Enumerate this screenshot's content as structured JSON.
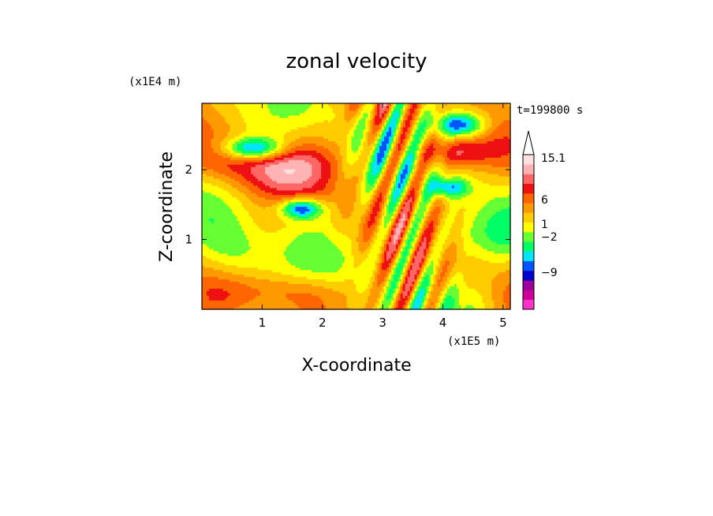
{
  "chart_data": {
    "type": "heatmap",
    "title": "zonal velocity",
    "xlabel": "X-coordinate",
    "ylabel": "Z-coordinate",
    "x_unit": "(x1E5 m)",
    "y_unit": "(x1E4 m)",
    "time_label": "t=199800 s",
    "xlim": [
      0,
      5.12
    ],
    "ylim": [
      0,
      2.95
    ],
    "x_ticks": [
      1,
      2,
      3,
      4,
      5
    ],
    "y_ticks": [
      1,
      2
    ],
    "colorbar": {
      "labels": [
        "15.1",
        "6",
        "1",
        "−2",
        "−9"
      ],
      "bins": [
        {
          "color": "#ff33cc"
        },
        {
          "color": "#cc0099"
        },
        {
          "color": "#990099"
        },
        {
          "color": "#0000cc"
        },
        {
          "color": "#0055ff"
        },
        {
          "color": "#00e5ff"
        },
        {
          "color": "#00ff66"
        },
        {
          "color": "#66ff33"
        },
        {
          "color": "#ffff00"
        },
        {
          "color": "#ffcc00"
        },
        {
          "color": "#ff9900"
        },
        {
          "color": "#ff6600"
        },
        {
          "color": "#ee1111"
        },
        {
          "color": "#ff6666"
        },
        {
          "color": "#ffb3b3"
        },
        {
          "color": "#ffe0e0"
        }
      ],
      "extend_max": true
    }
  }
}
